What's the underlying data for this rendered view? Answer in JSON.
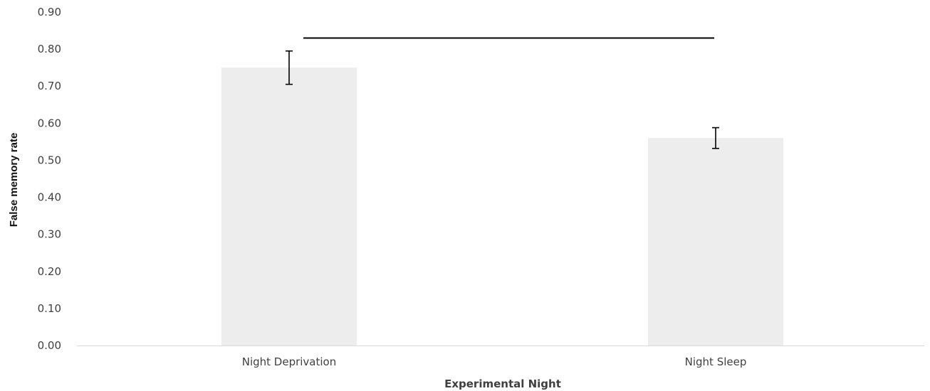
{
  "chart_data": {
    "type": "bar",
    "categories": [
      "Night Deprivation",
      "Night Sleep"
    ],
    "values": [
      0.75,
      0.56
    ],
    "error": [
      0.045,
      0.028
    ],
    "xlabel": "Experimental Night",
    "ylabel": "False memory rate",
    "ylim": [
      0,
      0.9
    ],
    "yticks": [
      "0.00",
      "0.10",
      "0.20",
      "0.30",
      "0.40",
      "0.50",
      "0.60",
      "0.70",
      "0.80",
      "0.90"
    ],
    "significance_bracket": {
      "from": "Night Deprivation",
      "to": "Night Sleep",
      "y": 0.83
    },
    "grid": false,
    "legend": "none",
    "colors": {
      "bar": "#ededed",
      "axis": "#d9d9d9",
      "error": "#000000",
      "bracket": "#000000"
    }
  }
}
